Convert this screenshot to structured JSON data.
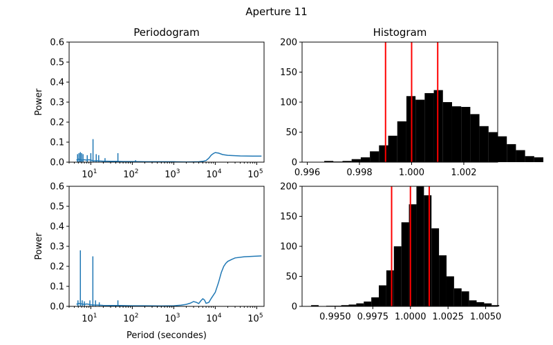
{
  "figure": {
    "suptitle": "Aperture 11",
    "colors": {
      "line": "#1f77b4",
      "bar": "#000000",
      "vline": "#ff0000",
      "axis": "#000000"
    }
  },
  "chart_data": [
    {
      "type": "line",
      "title": "Periodogram",
      "xlabel": "",
      "ylabel": "Power",
      "xscale": "log",
      "xlim": [
        3,
        150000
      ],
      "ylim": [
        0,
        0.6
      ],
      "yticks": [
        "0.0",
        "0.1",
        "0.2",
        "0.3",
        "0.4",
        "0.5",
        "0.6"
      ],
      "xticks": [
        "10^1",
        "10^2",
        "10^3",
        "10^4",
        "10^5"
      ],
      "grid": false,
      "series": [
        {
          "x": [
            4.5,
            5,
            5.5,
            6,
            7,
            8,
            9,
            10,
            11,
            12,
            14,
            16,
            20,
            25,
            30,
            40,
            60,
            100,
            200,
            500,
            1000,
            2000,
            4000,
            5000,
            6000,
            7000,
            8000,
            9000,
            10000,
            12000,
            15000,
            20000,
            40000,
            80000,
            130000
          ],
          "y": [
            0.01,
            0.015,
            0.012,
            0.01,
            0.012,
            0.01,
            0.012,
            0.01,
            0.008,
            0.006,
            0.007,
            0.006,
            0.005,
            0.005,
            0.004,
            0.004,
            0.003,
            0.003,
            0.002,
            0.002,
            0.002,
            0.001,
            0.002,
            0.004,
            0.008,
            0.02,
            0.035,
            0.043,
            0.048,
            0.045,
            0.038,
            0.034,
            0.031,
            0.03,
            0.03
          ]
        }
      ],
      "spikes": [
        {
          "x": 4.8,
          "y": 0.04
        },
        {
          "x": 5.2,
          "y": 0.045
        },
        {
          "x": 5.6,
          "y": 0.05
        },
        {
          "x": 6.0,
          "y": 0.045
        },
        {
          "x": 6.5,
          "y": 0.04
        },
        {
          "x": 8.2,
          "y": 0.035
        },
        {
          "x": 10,
          "y": 0.045
        },
        {
          "x": 11.3,
          "y": 0.115
        },
        {
          "x": 13.5,
          "y": 0.04
        },
        {
          "x": 15.5,
          "y": 0.035
        },
        {
          "x": 22,
          "y": 0.02
        },
        {
          "x": 45,
          "y": 0.045
        },
        {
          "x": 120,
          "y": 0.01
        }
      ]
    },
    {
      "type": "bar",
      "title": "Histogram",
      "xlim": [
        0.9958,
        1.0033
      ],
      "ylim": [
        0,
        200
      ],
      "xticks": [
        {
          "v": 0.996,
          "label": "0.996"
        },
        {
          "v": 0.998,
          "label": "0.998"
        },
        {
          "v": 1.0,
          "label": "1.000"
        },
        {
          "v": 1.002,
          "label": "1.002"
        }
      ],
      "yticks": [
        "0",
        "50",
        "100",
        "150",
        "200"
      ],
      "bins_start": 0.9963,
      "bin_width": 0.00035,
      "counts": [
        0,
        2,
        1,
        2,
        5,
        8,
        18,
        28,
        44,
        68,
        110,
        104,
        115,
        120,
        100,
        93,
        92,
        80,
        60,
        50,
        43,
        30,
        20,
        10,
        8
      ],
      "vlines": [
        0.999,
        1.0,
        1.001
      ]
    },
    {
      "type": "line",
      "title": "",
      "xlabel": "Period (secondes)",
      "ylabel": "Power",
      "xscale": "log",
      "xlim": [
        3,
        150000
      ],
      "ylim": [
        0,
        0.6
      ],
      "yticks": [
        "0.0",
        "0.1",
        "0.2",
        "0.3",
        "0.4",
        "0.5",
        "0.6"
      ],
      "xticks": [
        "10^1",
        "10^2",
        "10^3",
        "10^4",
        "10^5"
      ],
      "grid": false,
      "series": [
        {
          "x": [
            4.5,
            5,
            6,
            7,
            8,
            10,
            12,
            16,
            20,
            30,
            50,
            100,
            200,
            500,
            1000,
            1500,
            2000,
            2500,
            3000,
            3500,
            4000,
            4500,
            5000,
            5500,
            6000,
            7000,
            8000,
            10000,
            12000,
            14000,
            16000,
            18000,
            20000,
            25000,
            30000,
            50000,
            80000,
            130000
          ],
          "y": [
            0.01,
            0.015,
            0.012,
            0.01,
            0.012,
            0.008,
            0.007,
            0.006,
            0.005,
            0.004,
            0.004,
            0.003,
            0.003,
            0.002,
            0.003,
            0.006,
            0.01,
            0.016,
            0.024,
            0.02,
            0.014,
            0.028,
            0.038,
            0.032,
            0.015,
            0.02,
            0.04,
            0.07,
            0.12,
            0.17,
            0.2,
            0.215,
            0.225,
            0.235,
            0.242,
            0.248,
            0.25,
            0.252
          ]
        }
      ],
      "spikes": [
        {
          "x": 4.9,
          "y": 0.03
        },
        {
          "x": 5.6,
          "y": 0.28
        },
        {
          "x": 6.2,
          "y": 0.03
        },
        {
          "x": 7.0,
          "y": 0.025
        },
        {
          "x": 9.5,
          "y": 0.03
        },
        {
          "x": 11.2,
          "y": 0.25
        },
        {
          "x": 13.0,
          "y": 0.03
        },
        {
          "x": 16.0,
          "y": 0.02
        },
        {
          "x": 45,
          "y": 0.03
        }
      ]
    },
    {
      "type": "bar",
      "title": "",
      "xlim": [
        0.9928,
        1.0058
      ],
      "ylim": [
        0,
        200
      ],
      "xticks": [
        {
          "v": 0.995,
          "label": "0.9950"
        },
        {
          "v": 0.9975,
          "label": "0.9975"
        },
        {
          "v": 1.0,
          "label": "1.0000"
        },
        {
          "v": 1.0025,
          "label": "1.0025"
        },
        {
          "v": 1.005,
          "label": "1.0050"
        }
      ],
      "yticks": [
        "0",
        "50",
        "100",
        "150",
        "200"
      ],
      "bins_start": 0.9934,
      "bin_width": 0.0005,
      "counts": [
        2,
        0,
        1,
        1,
        2,
        3,
        5,
        8,
        15,
        35,
        60,
        100,
        140,
        170,
        200,
        185,
        130,
        85,
        50,
        30,
        25,
        10,
        7,
        5,
        2
      ],
      "vlines": [
        0.99875,
        1.0,
        1.00125
      ]
    }
  ]
}
